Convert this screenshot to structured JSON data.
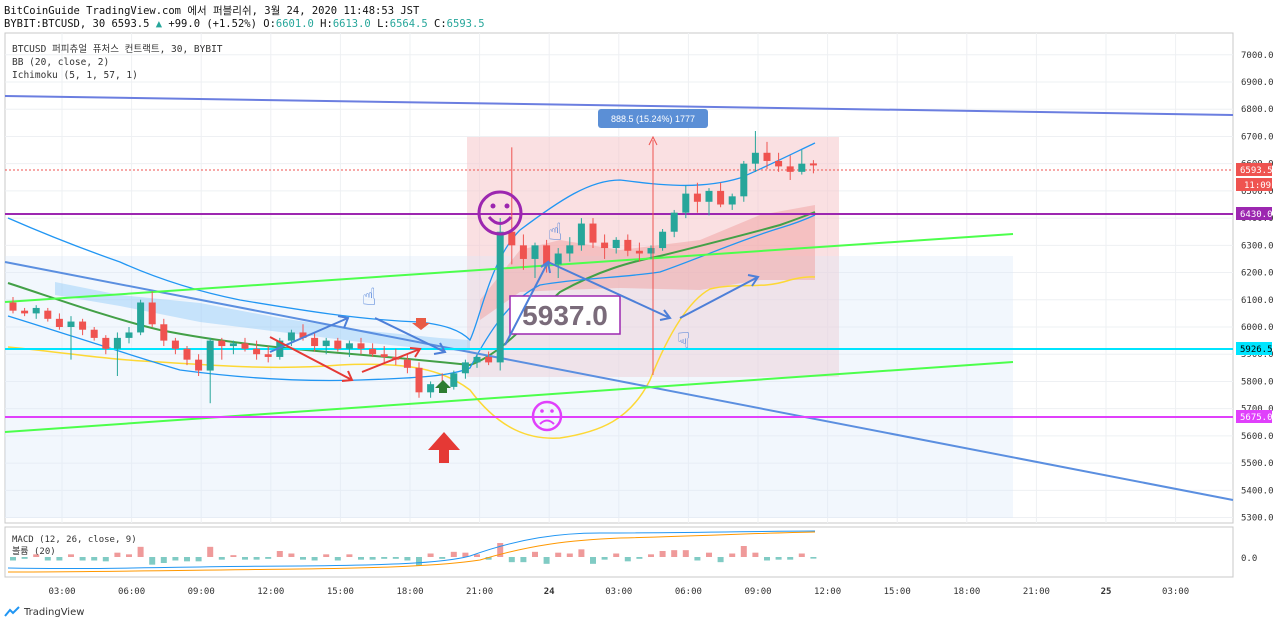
{
  "header": {
    "line1": "BitCoinGuide TradingView.com 에서 퍼블리쉬, 3월 24, 2020 11:48:53 JST",
    "symbol": "BYBIT:BTCUSD, 30",
    "last": "6593.5",
    "change": "+99.0 (+1.52%)",
    "o_label": "O:",
    "o": "6601.0",
    "h_label": "H:",
    "h": "6613.0",
    "l_label": "L:",
    "l": "6564.5",
    "c_label": "C:",
    "c": "6593.5"
  },
  "legend": {
    "title": "BTCUSD 퍼피츄얼 퓨처스 컨트랙트, 30, BYBIT",
    "bb": "BB (20, close, 2)",
    "ichimoku": "Ichimoku (5, 1, 57, 1)"
  },
  "macd_legend": {
    "macd": "MACD (12, 26, close, 9)",
    "vol": "볼륨 (20)"
  },
  "macd_axis_label": "0.0",
  "annotations": {
    "price_big": "5937.0",
    "measure": "888.5 (15.24%) 1777",
    "price_tag": "6593.5",
    "time_tag": "11:09",
    "level_6430": "6430.0",
    "level_5926": "5926.5",
    "level_5675": "5675.0"
  },
  "footer": {
    "brand": "TradingView"
  },
  "colors": {
    "up": "#26a69a",
    "down": "#ef5350",
    "bb": "#2196f3",
    "ichimoku_green": "#43a047",
    "ichimoku_yellow": "#ffeb3b",
    "level_purple": "#9c27b0",
    "level_cyan": "#00e5ff",
    "level_magenta": "#e040fb",
    "trend_green": "#4cff4c",
    "trend_blue": "#6b7ee0"
  },
  "chart_data": {
    "type": "candlestick",
    "y_ticks": [
      7000,
      6900,
      6800,
      6700,
      6600,
      6500,
      6400,
      6300,
      6200,
      6100,
      6000,
      5900,
      5800,
      5700,
      5600,
      5500,
      5400,
      5300
    ],
    "ylim": [
      5280,
      7080
    ],
    "x_ticks": [
      "03:00",
      "06:00",
      "09:00",
      "12:00",
      "15:00",
      "18:00",
      "21:00",
      "24",
      "03:00",
      "06:00",
      "09:00",
      "12:00",
      "15:00",
      "18:00",
      "21:00",
      "25",
      "03:00"
    ],
    "levels": [
      6430,
      5926.5,
      5675
    ],
    "candles": [
      [
        6090,
        6110,
        6050,
        6060
      ],
      [
        6060,
        6070,
        6040,
        6050
      ],
      [
        6050,
        6080,
        6030,
        6070
      ],
      [
        6060,
        6070,
        6020,
        6030
      ],
      [
        6030,
        6050,
        5990,
        6000
      ],
      [
        6000,
        6040,
        5880,
        6020
      ],
      [
        6020,
        6030,
        5970,
        5990
      ],
      [
        5990,
        6000,
        5950,
        5960
      ],
      [
        5960,
        5970,
        5900,
        5920
      ],
      [
        5920,
        5980,
        5820,
        5960
      ],
      [
        5960,
        6000,
        5940,
        5980
      ],
      [
        5980,
        6100,
        5970,
        6090
      ],
      [
        6090,
        6130,
        6000,
        6010
      ],
      [
        6010,
        6030,
        5930,
        5950
      ],
      [
        5950,
        5960,
        5900,
        5920
      ],
      [
        5920,
        5930,
        5860,
        5880
      ],
      [
        5880,
        5900,
        5820,
        5840
      ],
      [
        5840,
        5960,
        5720,
        5950
      ],
      [
        5950,
        5960,
        5880,
        5930
      ],
      [
        5930,
        5950,
        5900,
        5940
      ],
      [
        5940,
        5960,
        5910,
        5920
      ],
      [
        5920,
        5950,
        5880,
        5900
      ],
      [
        5900,
        5930,
        5870,
        5890
      ],
      [
        5890,
        5960,
        5880,
        5950
      ],
      [
        5950,
        5990,
        5930,
        5980
      ],
      [
        5980,
        6010,
        5950,
        5960
      ],
      [
        5960,
        5980,
        5910,
        5930
      ],
      [
        5930,
        5960,
        5900,
        5950
      ],
      [
        5950,
        5960,
        5910,
        5920
      ],
      [
        5920,
        5950,
        5890,
        5940
      ],
      [
        5940,
        5960,
        5900,
        5920
      ],
      [
        5920,
        5940,
        5890,
        5900
      ],
      [
        5900,
        5930,
        5870,
        5890
      ],
      [
        5890,
        5920,
        5860,
        5880
      ],
      [
        5880,
        5900,
        5830,
        5850
      ],
      [
        5850,
        5870,
        5740,
        5760
      ],
      [
        5760,
        5800,
        5740,
        5790
      ],
      [
        5790,
        5830,
        5770,
        5780
      ],
      [
        5780,
        5840,
        5770,
        5830
      ],
      [
        5830,
        5880,
        5810,
        5870
      ],
      [
        5870,
        5900,
        5850,
        5890
      ],
      [
        5890,
        5910,
        5860,
        5870
      ],
      [
        5870,
        6400,
        5840,
        6350
      ],
      [
        6350,
        6660,
        6230,
        6300
      ],
      [
        6300,
        6340,
        6210,
        6250
      ],
      [
        6250,
        6310,
        6180,
        6300
      ],
      [
        6300,
        6320,
        6200,
        6230
      ],
      [
        6230,
        6290,
        6180,
        6270
      ],
      [
        6270,
        6330,
        6240,
        6300
      ],
      [
        6300,
        6400,
        6280,
        6380
      ],
      [
        6380,
        6400,
        6290,
        6310
      ],
      [
        6310,
        6340,
        6250,
        6290
      ],
      [
        6290,
        6330,
        6270,
        6320
      ],
      [
        6320,
        6340,
        6260,
        6280
      ],
      [
        6280,
        6310,
        6240,
        6270
      ],
      [
        6270,
        6300,
        6250,
        6290
      ],
      [
        6290,
        6360,
        6280,
        6350
      ],
      [
        6350,
        6430,
        6330,
        6420
      ],
      [
        6420,
        6520,
        6400,
        6490
      ],
      [
        6490,
        6530,
        6420,
        6460
      ],
      [
        6460,
        6510,
        6410,
        6500
      ],
      [
        6500,
        6530,
        6440,
        6450
      ],
      [
        6450,
        6490,
        6430,
        6480
      ],
      [
        6480,
        6610,
        6460,
        6600
      ],
      [
        6600,
        6720,
        6570,
        6640
      ],
      [
        6640,
        6680,
        6580,
        6610
      ],
      [
        6610,
        6640,
        6570,
        6590
      ],
      [
        6590,
        6630,
        6540,
        6570
      ],
      [
        6570,
        6650,
        6560,
        6600
      ],
      [
        6601,
        6613,
        6564.5,
        6593.5
      ]
    ]
  }
}
